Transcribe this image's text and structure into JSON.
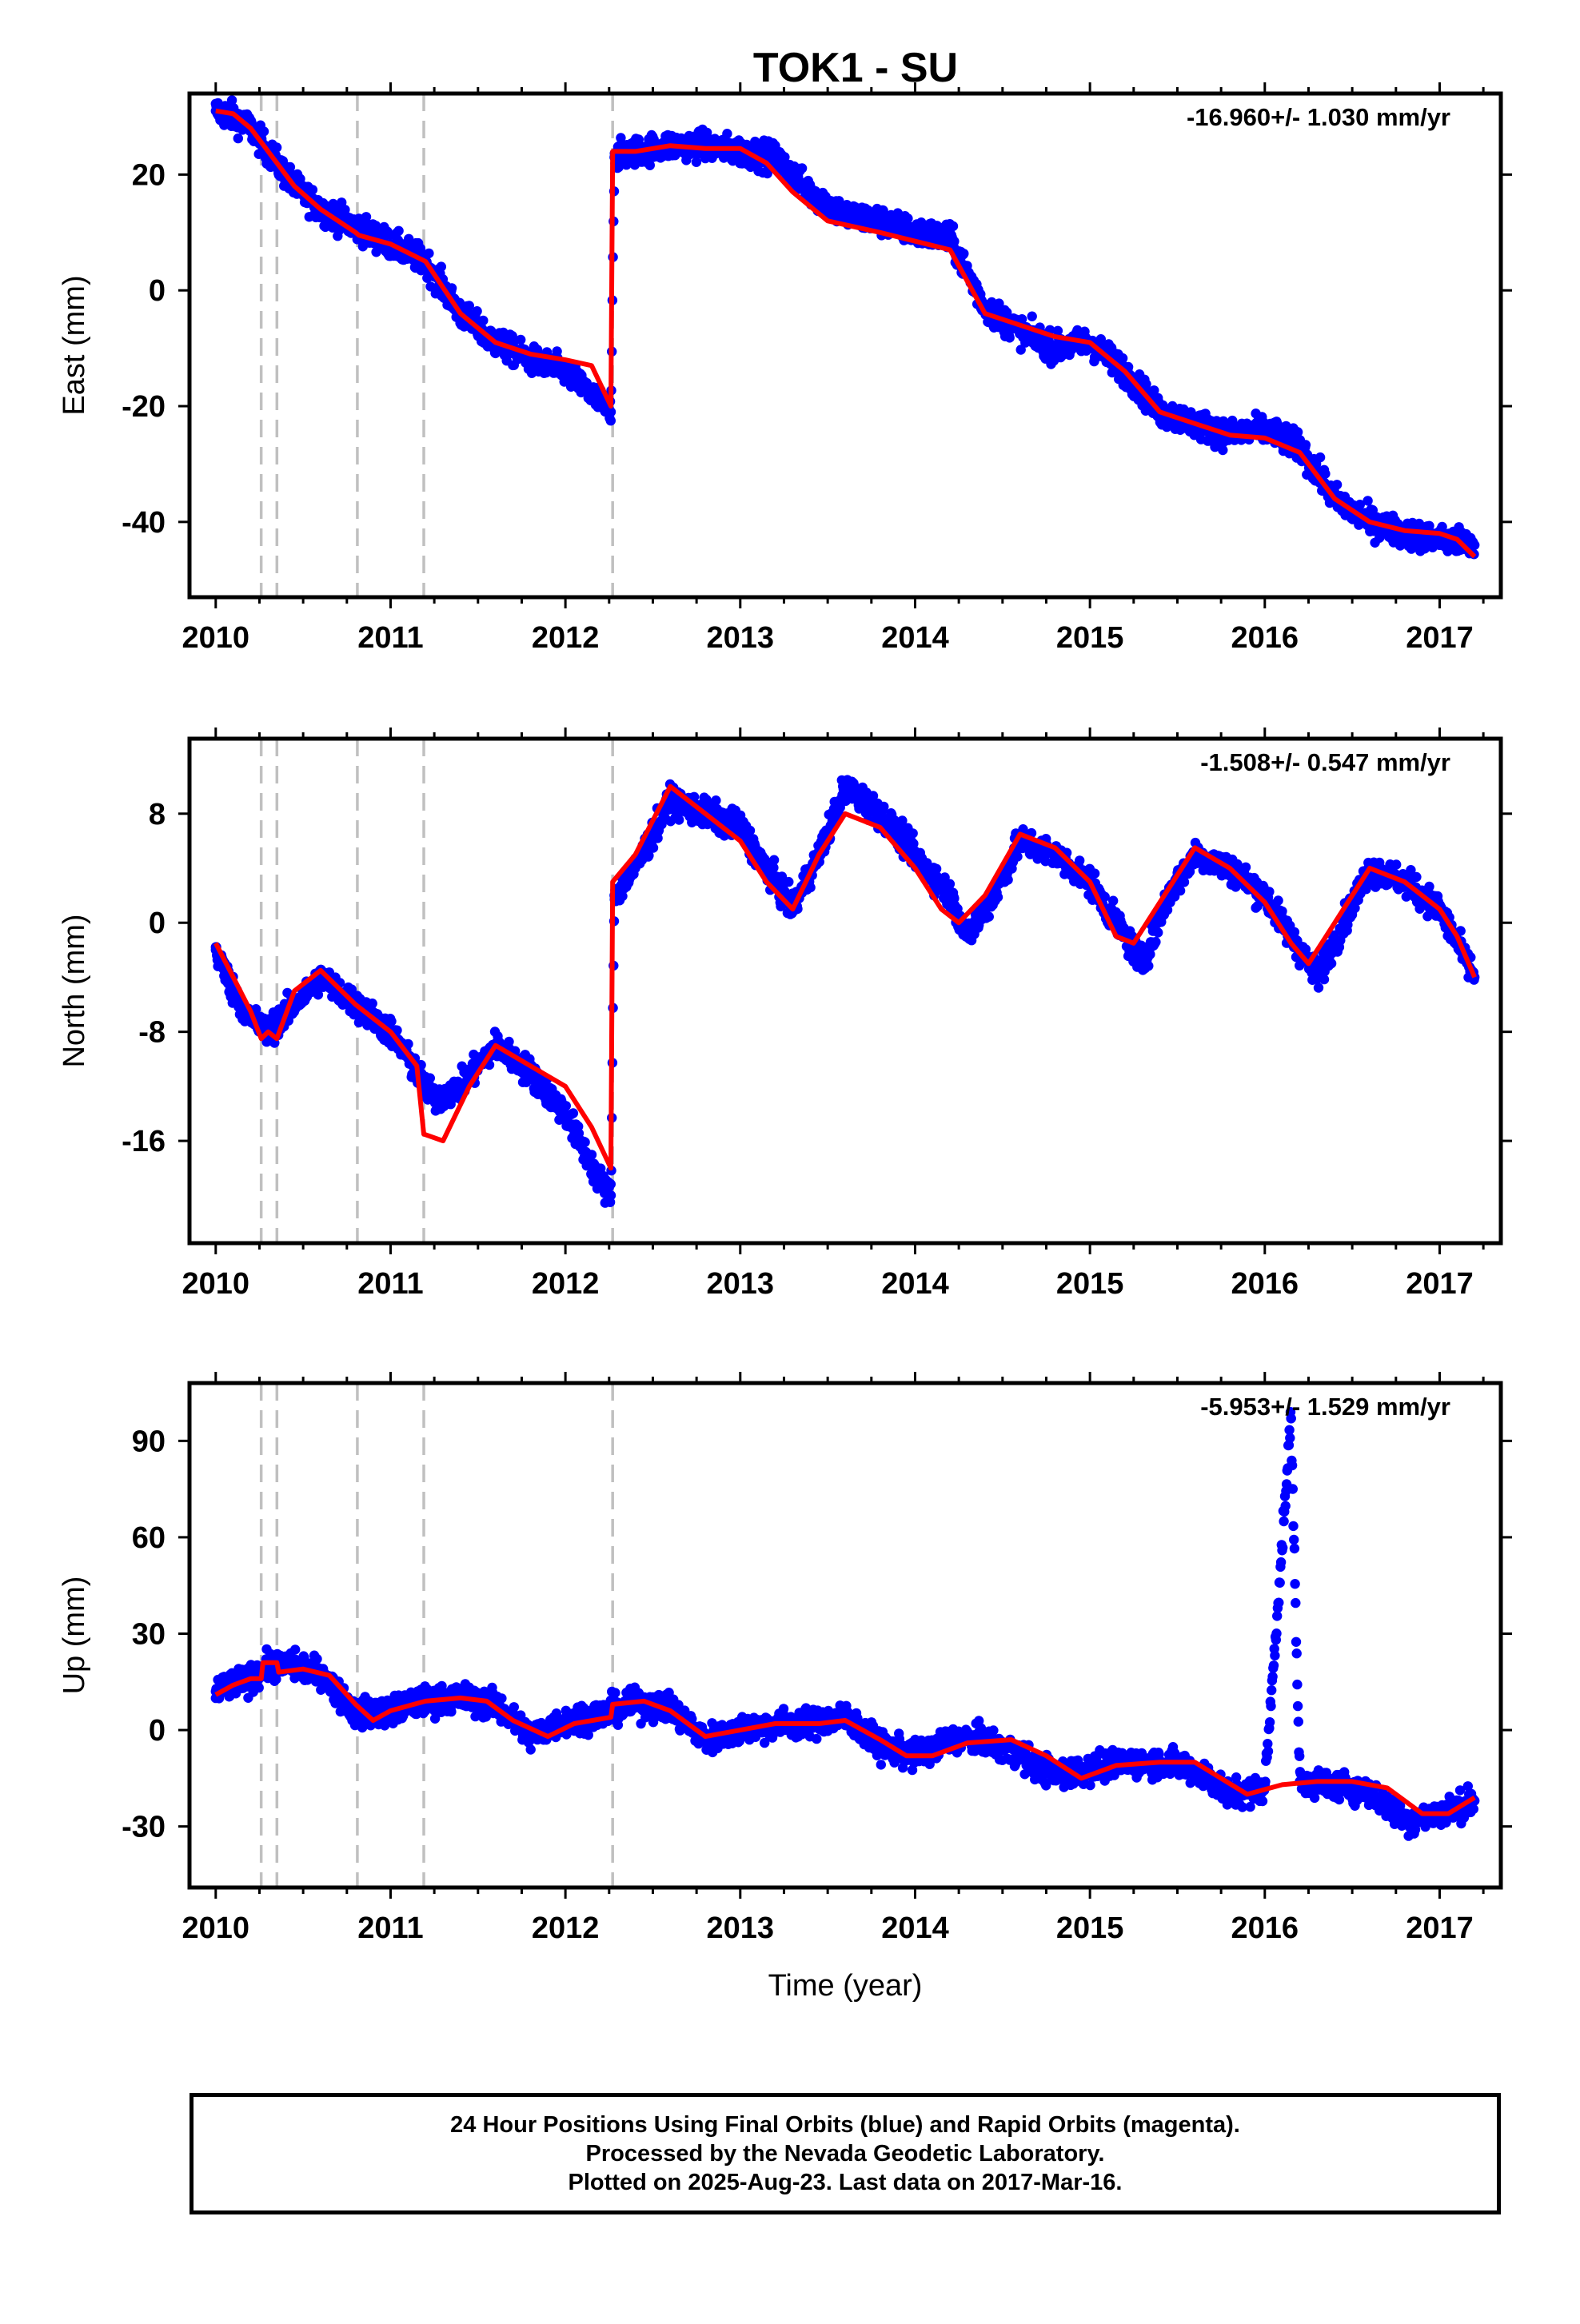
{
  "title": "TOK1 - SU",
  "colors": {
    "points": "#0000ff",
    "fit": "#ff0000",
    "event_lines": "#c0c0c0",
    "frame": "#000000"
  },
  "caption": {
    "line1": "24 Hour Positions Using Final Orbits (blue) and Rapid Orbits (magenta).",
    "line2": "Processed by the Nevada Geodetic Laboratory.",
    "line3": "Plotted on 2025-Aug-23. Last data on 2017-Mar-16."
  },
  "chart_data": [
    {
      "type": "scatter",
      "ylabel": "East (mm)",
      "xlabel": "",
      "rate_label": "-16.960+/- 1.030 mm/yr",
      "xlim": [
        2009.85,
        2017.35
      ],
      "ylim": [
        -53,
        34
      ],
      "xticks": [
        2010,
        2011,
        2012,
        2013,
        2014,
        2015,
        2016,
        2017
      ],
      "yticks": [
        20,
        0,
        -20,
        -40
      ],
      "event_lines": [
        2010.26,
        2010.35,
        2010.81,
        2011.19,
        2012.27
      ],
      "series": [
        {
          "role": "daily-positions",
          "x": [
            2010.0,
            2010.1,
            2010.2,
            2010.3,
            2010.45,
            2010.6,
            2010.8,
            2011.0,
            2011.2,
            2011.4,
            2011.6,
            2011.8,
            2012.0,
            2012.26,
            2012.28,
            2012.4,
            2012.6,
            2012.8,
            2013.0,
            2013.2,
            2013.4,
            2013.6,
            2013.8,
            2014.0,
            2014.2,
            2014.4,
            2014.6,
            2014.8,
            2015.0,
            2015.2,
            2015.4,
            2015.6,
            2015.8,
            2016.0,
            2016.2,
            2016.4,
            2016.6,
            2016.8,
            2017.0,
            2017.2
          ],
          "y": [
            31,
            30,
            28,
            24,
            18,
            14,
            11,
            8,
            5,
            -4,
            -9,
            -12,
            -14,
            -21,
            23,
            24,
            25,
            25,
            24,
            23,
            17,
            13,
            12,
            10,
            9,
            -3,
            -7,
            -10,
            -9,
            -14,
            -21,
            -23,
            -25,
            -24,
            -27,
            -36,
            -40,
            -42,
            -43,
            -44
          ]
        },
        {
          "role": "model-fit",
          "x": [
            2010.0,
            2010.1,
            2010.2,
            2010.3,
            2010.45,
            2010.6,
            2010.8,
            2010.82,
            2011.0,
            2011.2,
            2011.4,
            2011.6,
            2011.8,
            2012.0,
            2012.15,
            2012.26,
            2012.27,
            2012.4,
            2012.6,
            2012.8,
            2013.0,
            2013.15,
            2013.3,
            2013.5,
            2013.8,
            2014.0,
            2014.2,
            2014.4,
            2014.6,
            2014.8,
            2015.0,
            2015.2,
            2015.4,
            2015.6,
            2015.8,
            2016.0,
            2016.2,
            2016.4,
            2016.6,
            2016.8,
            2017.0,
            2017.1,
            2017.2
          ],
          "y": [
            31,
            30.5,
            28,
            24,
            18,
            14,
            10,
            9.5,
            8,
            5,
            -4,
            -9,
            -11,
            -12,
            -13,
            -20,
            24,
            24,
            25,
            24.5,
            24.5,
            22,
            17,
            12,
            10,
            8.5,
            7,
            -4,
            -6,
            -8,
            -9,
            -14,
            -21,
            -23,
            -25,
            -25.5,
            -28,
            -36,
            -40,
            -41.5,
            -42,
            -43,
            -46
          ]
        }
      ]
    },
    {
      "type": "scatter",
      "ylabel": "North (mm)",
      "xlabel": "",
      "rate_label": "-1.508+/- 0.547 mm/yr",
      "xlim": [
        2009.85,
        2017.35
      ],
      "ylim": [
        -23.5,
        13.5
      ],
      "xticks": [
        2010,
        2011,
        2012,
        2013,
        2014,
        2015,
        2016,
        2017
      ],
      "yticks": [
        8,
        0,
        -8,
        -16
      ],
      "event_lines": [
        2010.26,
        2010.35,
        2010.81,
        2011.19,
        2012.27
      ],
      "series": [
        {
          "role": "daily-positions",
          "x": [
            2010.0,
            2010.1,
            2010.2,
            2010.3,
            2010.45,
            2010.6,
            2010.8,
            2011.0,
            2011.15,
            2011.25,
            2011.4,
            2011.6,
            2011.8,
            2012.0,
            2012.2,
            2012.26,
            2012.28,
            2012.4,
            2012.6,
            2012.8,
            2013.0,
            2013.2,
            2013.3,
            2013.45,
            2013.6,
            2013.8,
            2014.0,
            2014.2,
            2014.3,
            2014.45,
            2014.6,
            2014.8,
            2015.0,
            2015.2,
            2015.3,
            2015.45,
            2015.6,
            2015.8,
            2016.0,
            2016.2,
            2016.3,
            2016.45,
            2016.6,
            2016.8,
            2017.0,
            2017.2
          ],
          "y": [
            -2,
            -5,
            -7,
            -8,
            -6,
            -4,
            -6,
            -8,
            -11,
            -13,
            -12,
            -9,
            -11,
            -14,
            -19,
            -20,
            2,
            4,
            9,
            8,
            7,
            3,
            1,
            5,
            10,
            8,
            5,
            2,
            -1,
            2,
            6,
            5,
            3,
            -1,
            -3,
            2,
            5,
            4,
            2,
            -2,
            -4,
            0,
            4,
            3,
            1,
            -4
          ]
        },
        {
          "role": "model-fit",
          "x": [
            2010.0,
            2010.1,
            2010.2,
            2010.26,
            2010.3,
            2010.35,
            2010.45,
            2010.6,
            2010.8,
            2011.0,
            2011.15,
            2011.19,
            2011.3,
            2011.45,
            2011.6,
            2011.8,
            2012.0,
            2012.15,
            2012.26,
            2012.27,
            2012.4,
            2012.6,
            2012.8,
            2013.0,
            2013.15,
            2013.3,
            2013.45,
            2013.6,
            2013.8,
            2014.0,
            2014.15,
            2014.25,
            2014.4,
            2014.6,
            2014.8,
            2015.0,
            2015.15,
            2015.25,
            2015.4,
            2015.6,
            2015.8,
            2016.0,
            2016.15,
            2016.25,
            2016.4,
            2016.6,
            2016.8,
            2017.0,
            2017.1,
            2017.2
          ],
          "y": [
            -1.5,
            -4,
            -6.5,
            -8.5,
            -8,
            -8.5,
            -5,
            -3.5,
            -6,
            -8,
            -10.5,
            -15.5,
            -16,
            -12,
            -9,
            -10.5,
            -12,
            -15,
            -18,
            3,
            5,
            10,
            8,
            6,
            3,
            1,
            5,
            8,
            7,
            4,
            1,
            0,
            2,
            6.5,
            5.5,
            3,
            -1,
            -1.5,
            1.5,
            5.5,
            4,
            1.5,
            -1.5,
            -3,
            0,
            4,
            3,
            1,
            -1,
            -4
          ]
        }
      ]
    },
    {
      "type": "scatter",
      "ylabel": "Up (mm)",
      "xlabel": "Time (year)",
      "rate_label": "-5.953+/- 1.529 mm/yr",
      "xlim": [
        2009.85,
        2017.35
      ],
      "ylim": [
        -49,
        108
      ],
      "xticks": [
        2010,
        2011,
        2012,
        2013,
        2014,
        2015,
        2016,
        2017
      ],
      "yticks": [
        90,
        60,
        30,
        0,
        -30
      ],
      "event_lines": [
        2010.26,
        2010.35,
        2010.81,
        2011.19,
        2012.27
      ],
      "series": [
        {
          "role": "daily-positions",
          "x": [
            2010.0,
            2010.1,
            2010.2,
            2010.3,
            2010.45,
            2010.6,
            2010.8,
            2011.0,
            2011.2,
            2011.4,
            2011.6,
            2011.8,
            2012.0,
            2012.2,
            2012.4,
            2012.6,
            2012.8,
            2013.0,
            2013.2,
            2013.4,
            2013.6,
            2013.8,
            2014.0,
            2014.2,
            2014.4,
            2014.6,
            2014.8,
            2015.0,
            2015.2,
            2015.4,
            2015.6,
            2015.8,
            2016.0,
            2016.15,
            2016.2,
            2016.4,
            2016.6,
            2016.8,
            2017.0,
            2017.2
          ],
          "y": [
            12,
            14,
            16,
            20,
            20,
            18,
            5,
            6,
            9,
            10,
            8,
            -2,
            3,
            5,
            8,
            7,
            -3,
            0,
            2,
            2,
            4,
            -5,
            -8,
            -3,
            -3,
            -8,
            -14,
            -12,
            -10,
            -10,
            -12,
            -20,
            -18,
            97,
            -16,
            -17,
            -19,
            -28,
            -26,
            -22
          ]
        },
        {
          "role": "model-fit",
          "x": [
            2010.0,
            2010.1,
            2010.2,
            2010.26,
            2010.27,
            2010.35,
            2010.36,
            2010.5,
            2010.65,
            2010.8,
            2010.9,
            2011.0,
            2011.2,
            2011.4,
            2011.55,
            2011.7,
            2011.9,
            2012.05,
            2012.26,
            2012.27,
            2012.45,
            2012.6,
            2012.8,
            2013.0,
            2013.2,
            2013.45,
            2013.6,
            2013.8,
            2013.95,
            2014.1,
            2014.3,
            2014.55,
            2014.75,
            2014.95,
            2015.15,
            2015.4,
            2015.6,
            2015.75,
            2015.9,
            2016.1,
            2016.3,
            2016.5,
            2016.7,
            2016.9,
            2017.05,
            2017.2
          ],
          "y": [
            11,
            14,
            16,
            16,
            21,
            21,
            18,
            19,
            17,
            8,
            3,
            6,
            9,
            10,
            9,
            3,
            -2,
            2,
            4,
            8,
            9,
            6,
            -2,
            0,
            2,
            2,
            3,
            -3,
            -8,
            -8,
            -4,
            -3,
            -8,
            -15,
            -11,
            -10,
            -10,
            -15,
            -20,
            -17,
            -16,
            -16,
            -18,
            -26,
            -26,
            -21
          ]
        }
      ]
    }
  ]
}
